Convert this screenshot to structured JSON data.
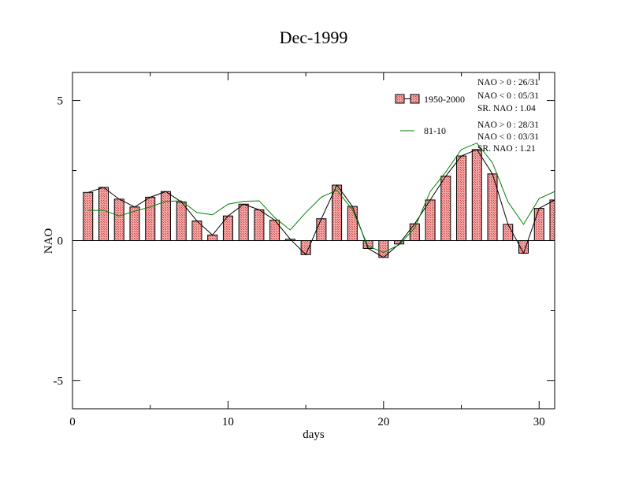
{
  "chart_data": {
    "type": "bar",
    "title": "Dec-1999",
    "xlabel": "days",
    "ylabel": "NAO",
    "xlim": [
      0,
      31
    ],
    "ylim": [
      -6,
      6
    ],
    "x_ticks": [
      0,
      10,
      20,
      30
    ],
    "y_ticks": [
      5,
      0,
      -5
    ],
    "x_tick_labels": [
      "0",
      "10",
      "20",
      "30"
    ],
    "y_tick_labels": [
      "5",
      "0",
      "-5"
    ],
    "grid": false,
    "legend_position": "top-right",
    "days": [
      1,
      2,
      3,
      4,
      5,
      6,
      7,
      8,
      9,
      10,
      11,
      12,
      13,
      14,
      15,
      16,
      17,
      18,
      19,
      20,
      21,
      22,
      23,
      24,
      25,
      26,
      27,
      28,
      29,
      30,
      31
    ],
    "series": [
      {
        "name": "1950-2000",
        "kind": "bar+line",
        "bar_fill": "#f08080",
        "line_color": "#000000",
        "values": [
          1.72,
          1.9,
          1.48,
          1.2,
          1.55,
          1.75,
          1.38,
          0.7,
          0.2,
          0.88,
          1.3,
          1.1,
          0.73,
          0.05,
          -0.5,
          0.78,
          1.98,
          1.22,
          -0.28,
          -0.6,
          -0.12,
          0.6,
          1.45,
          2.3,
          3.02,
          3.25,
          2.38,
          0.58,
          -0.45,
          1.15,
          1.45
        ]
      },
      {
        "name": "81-10",
        "kind": "line",
        "line_color": "#008000",
        "values": [
          1.08,
          1.08,
          0.88,
          1.05,
          1.2,
          1.4,
          1.42,
          1.0,
          0.92,
          1.3,
          1.4,
          1.42,
          0.82,
          0.38,
          1.0,
          1.55,
          1.8,
          1.1,
          -0.2,
          -0.42,
          -0.15,
          0.45,
          1.75,
          2.45,
          3.25,
          3.48,
          2.78,
          1.38,
          0.58,
          1.5,
          1.75
        ]
      }
    ],
    "stats_1950_2000": [
      "NAO > 0 : 26/31",
      "NAO < 0 : 05/31",
      "SR. NAO :  1.04"
    ],
    "stats_81_10": [
      "NAO > 0 : 28/31",
      "NAO < 0 : 03/31",
      "SR. NAO :  1.21"
    ]
  }
}
